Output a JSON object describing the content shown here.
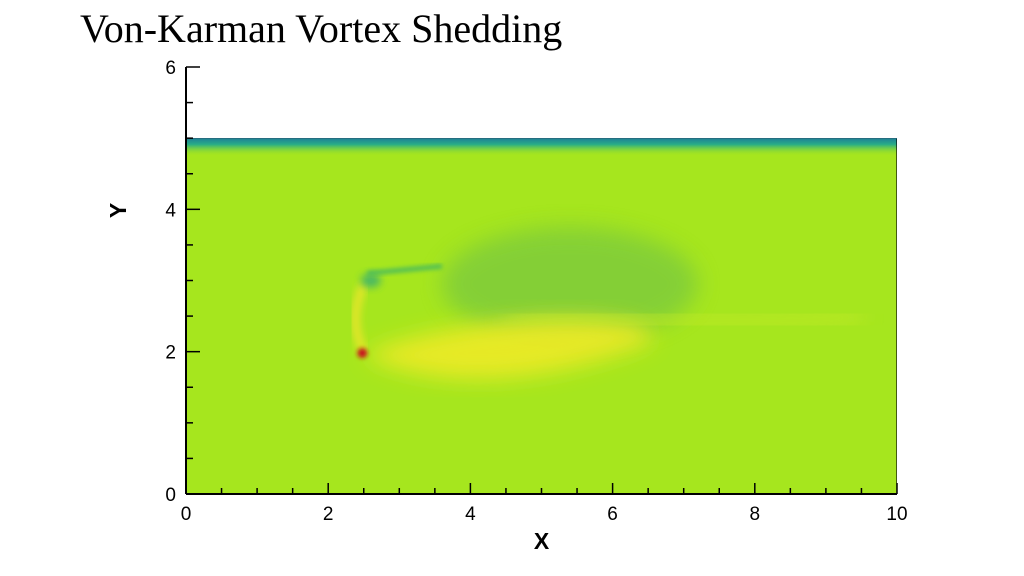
{
  "slide": {
    "title": "Von-Karman Vortex Shedding"
  },
  "chart_data": {
    "type": "heatmap",
    "title": "",
    "xlabel": "X",
    "ylabel": "Y",
    "xlim": [
      0,
      10
    ],
    "ylim": [
      0,
      6
    ],
    "x_ticks": [
      0,
      2,
      4,
      6,
      8,
      10
    ],
    "y_ticks": [
      0,
      2,
      4,
      6
    ],
    "field_ylim": [
      0,
      5
    ],
    "colors": {
      "background_field": "#a6e61e",
      "wall_band": "#27ac8a",
      "wake_low": "#7fcc3a",
      "wake_high": "#eeea26",
      "stagnation_peak": "#c8121a"
    }
  }
}
